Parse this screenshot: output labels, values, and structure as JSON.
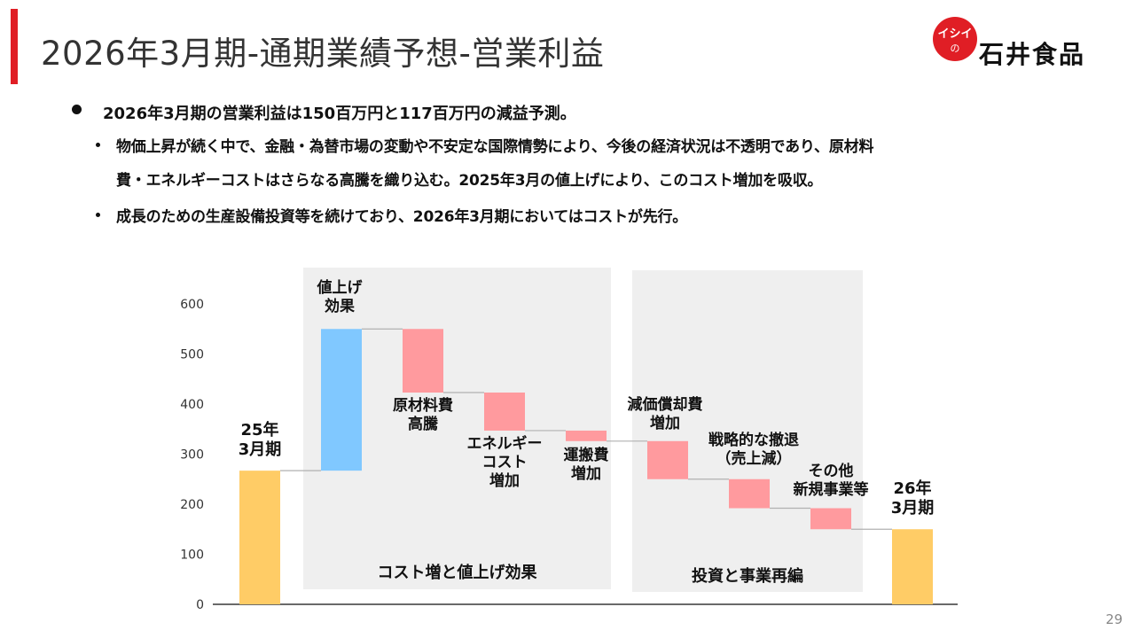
{
  "slide": {
    "title": "2026年3月期-通期業績予想-営業利益",
    "accent_color": "#e01e25",
    "page_number": "29"
  },
  "logo": {
    "badge_text": "イシイの",
    "company_name": "石井食品",
    "color": "#e01e25"
  },
  "bullets": {
    "main": "2026年3月期の営業利益は150百万円と117百万円の減益予測。",
    "sub1_line1": "物価上昇が続く中で、金融・為替市場の変動や不安定な国際情勢により、今後の経済状況は不透明であり、原材料",
    "sub1_line2": "費・エネルギーコストはさらなる高騰を織り込む。2025年3月の値上げにより、このコスト増加を吸収。",
    "sub2": "成長のための生産設備投資等を続けており、2026年3月期においてはコストが先行。"
  },
  "chart_data": {
    "type": "bar",
    "subtype": "waterfall",
    "ylim": [
      0,
      600
    ],
    "yticks": [
      0,
      100,
      200,
      300,
      400,
      500,
      600
    ],
    "grid": false,
    "colors": {
      "total": "#ffcc66",
      "increase": "#80c8ff",
      "decrease": "#ff9a9e",
      "group_bg": "#efefef",
      "connector": "#b0b0b0"
    },
    "steps": [
      {
        "label_lines": [
          "25年",
          "3月期"
        ],
        "kind": "total",
        "start": 0,
        "end": 267
      },
      {
        "label_lines": [
          "値上げ",
          "効果"
        ],
        "kind": "increase",
        "start": 267,
        "end": 550
      },
      {
        "label_lines": [
          "原材料費",
          "高騰"
        ],
        "kind": "decrease",
        "start": 550,
        "end": 423
      },
      {
        "label_lines": [
          "エネルギー",
          "コスト",
          "増加"
        ],
        "kind": "decrease",
        "start": 423,
        "end": 347
      },
      {
        "label_lines": [
          "運搬費",
          "増加"
        ],
        "kind": "decrease",
        "start": 347,
        "end": 326
      },
      {
        "label_lines": [
          "減価償却費",
          "増加"
        ],
        "kind": "decrease",
        "start": 326,
        "end": 250
      },
      {
        "label_lines": [
          "戦略的な撤退",
          "（売上減）"
        ],
        "kind": "decrease",
        "start": 250,
        "end": 192
      },
      {
        "label_lines": [
          "その他",
          "新規事業等"
        ],
        "kind": "decrease",
        "start": 192,
        "end": 150
      },
      {
        "label_lines": [
          "26年",
          "3月期"
        ],
        "kind": "total",
        "start": 0,
        "end": 150
      }
    ],
    "groups": [
      {
        "label": "コスト増と値上げ効果",
        "from_step": 1,
        "to_step": 4
      },
      {
        "label": "投資と事業再編",
        "from_step": 5,
        "to_step": 8
      }
    ]
  }
}
